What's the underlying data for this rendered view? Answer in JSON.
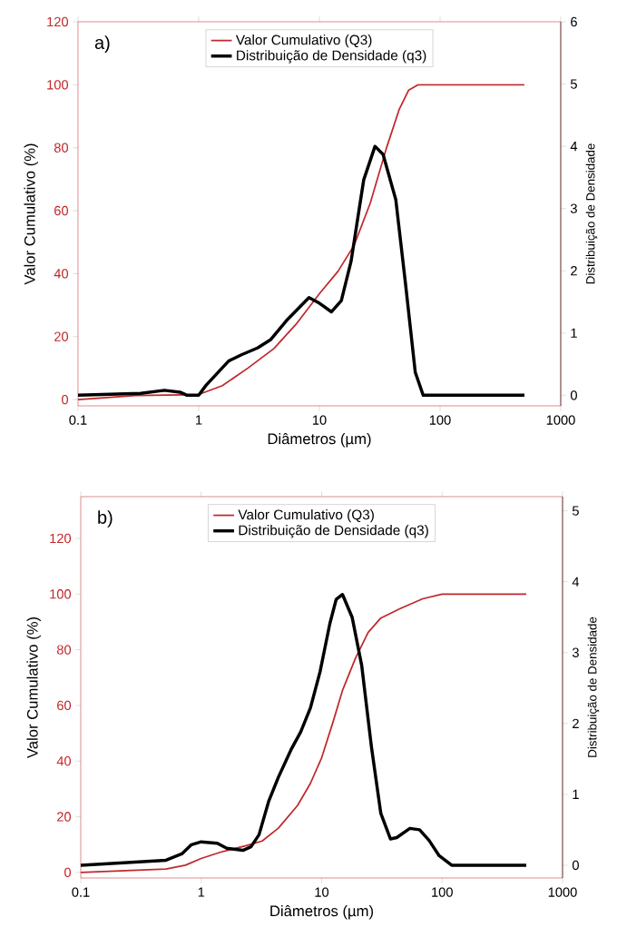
{
  "chart_data": [
    {
      "type": "line",
      "annotations": [
        "a)"
      ],
      "xlabel": "Diâmetros (µm)",
      "ylabel": "Valor Cumulativo (%)",
      "y2label": "Distribuição de Densidade",
      "log": "x",
      "legend": "top",
      "xlim": [
        0.1,
        1000
      ],
      "xticks": [
        0.1,
        1,
        10,
        100,
        1000
      ],
      "ylim": [
        -2,
        120
      ],
      "yticks": [
        0,
        20,
        40,
        60,
        80,
        100,
        120
      ],
      "y2lim": [
        -0.17,
        6
      ],
      "y2ticks": [
        0,
        1,
        2,
        3,
        4,
        5,
        6
      ],
      "series": [
        {
          "name": "Valor Cumulativo (Q3)",
          "color": "#c0282d",
          "x": [
            0.1,
            0.3,
            1,
            1.57,
            2.56,
            4.2,
            6.4,
            10,
            14.3,
            19.4,
            26.4,
            35.9,
            45.8,
            55,
            66,
            500
          ],
          "values": [
            0,
            1.3,
            1.6,
            4.4,
            10,
            16.2,
            23.9,
            33.6,
            40.8,
            49,
            62.4,
            79.8,
            92.1,
            98.3,
            100,
            100
          ]
        },
        {
          "name": "Distribuição de Densidade (q3)",
          "color": "#000000",
          "axis": "y2",
          "x": [
            0.1,
            0.33,
            0.52,
            0.7,
            0.8,
            1,
            1.15,
            1.77,
            2.26,
            3.07,
            3.93,
            5.34,
            8.2,
            9.8,
            12.6,
            15.2,
            18.3,
            23.3,
            28.9,
            33.7,
            43,
            51.8,
            62.3,
            72.5,
            500
          ],
          "values": [
            0,
            0.03,
            0.08,
            0.05,
            0,
            0,
            0.16,
            0.55,
            0.65,
            0.76,
            0.89,
            1.2,
            1.57,
            1.49,
            1.34,
            1.52,
            2.15,
            3.46,
            4.0,
            3.87,
            3.14,
            1.78,
            0.37,
            0,
            0
          ]
        }
      ]
    },
    {
      "type": "line",
      "annotations": [
        "b)"
      ],
      "xlabel": "Diâmetros (µm)",
      "ylabel": "Valor Cumulativo (%)",
      "y2label": "Distribuição de Densidade",
      "log": "x",
      "legend": "top",
      "xlim": [
        0.1,
        1000
      ],
      "xticks": [
        0.1,
        1,
        10,
        100,
        1000
      ],
      "ylim": [
        -2,
        135
      ],
      "yticks": [
        0,
        20,
        40,
        60,
        80,
        100,
        120
      ],
      "y2lim": [
        -0.18,
        5.2
      ],
      "y2ticks": [
        0,
        1,
        2,
        3,
        4,
        5
      ],
      "series": [
        {
          "name": "Valor Cumulativo (Q3)",
          "color": "#c0282d",
          "x": [
            0.1,
            0.51,
            0.74,
            1,
            1.45,
            2.36,
            3.21,
            4.37,
            6.3,
            8.07,
            10,
            12.4,
            14.9,
            19.1,
            24.3,
            31,
            44.9,
            69,
            100,
            500
          ],
          "values": [
            0,
            1.2,
            2.6,
            5,
            7.3,
            9.6,
            11.3,
            15.9,
            24,
            32,
            41.2,
            53.9,
            65.4,
            77,
            86.2,
            91.4,
            94.8,
            98.3,
            100,
            100
          ]
        },
        {
          "name": "Distribuição de Densidade (q3)",
          "color": "#000000",
          "axis": "y2",
          "x": [
            0.1,
            0.51,
            0.69,
            0.83,
            1,
            1.36,
            1.63,
            2.22,
            2.59,
            3.02,
            3.63,
            4.37,
            5.57,
            6.7,
            8.07,
            9.7,
            11.7,
            13.2,
            14.9,
            17.9,
            21.5,
            25.9,
            31,
            37.3,
            42,
            54,
            65,
            78,
            94,
            120,
            500
          ],
          "values": [
            0,
            0.07,
            0.16,
            0.29,
            0.33,
            0.31,
            0.24,
            0.21,
            0.26,
            0.43,
            0.9,
            1.24,
            1.63,
            1.88,
            2.22,
            2.73,
            3.41,
            3.75,
            3.82,
            3.5,
            2.82,
            1.67,
            0.73,
            0.37,
            0.39,
            0.52,
            0.5,
            0.35,
            0.14,
            0,
            0
          ]
        }
      ]
    }
  ]
}
